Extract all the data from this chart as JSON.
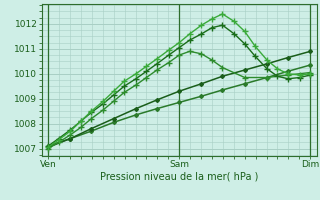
{
  "bg_color": "#ceeee6",
  "grid_color": "#a8cfc4",
  "title": "Pression niveau de la mer( hPa )",
  "xtick_labels": [
    "Ven",
    "Sam",
    "Dim"
  ],
  "xtick_positions": [
    0,
    1,
    2
  ],
  "ylim": [
    1006.7,
    1012.8
  ],
  "yticks": [
    1007,
    1008,
    1009,
    1010,
    1011,
    1012
  ],
  "series": [
    {
      "x": [
        0.0,
        0.17,
        0.33,
        0.5,
        0.67,
        0.83,
        1.0,
        1.17,
        1.33,
        1.5,
        1.67,
        1.83,
        2.0
      ],
      "y": [
        1007.1,
        1007.4,
        1007.7,
        1008.05,
        1008.35,
        1008.6,
        1008.85,
        1009.1,
        1009.35,
        1009.6,
        1009.85,
        1010.1,
        1010.35
      ],
      "color": "#2a7a2a",
      "lw": 1.1,
      "marker": "D",
      "ms": 2.0
    },
    {
      "x": [
        0.0,
        0.17,
        0.33,
        0.5,
        0.67,
        0.83,
        1.0,
        1.17,
        1.33,
        1.5,
        1.67,
        1.83,
        2.0
      ],
      "y": [
        1007.05,
        1007.4,
        1007.8,
        1008.2,
        1008.6,
        1008.95,
        1009.3,
        1009.6,
        1009.9,
        1010.15,
        1010.4,
        1010.65,
        1010.9
      ],
      "color": "#1a5e1a",
      "lw": 1.1,
      "marker": "D",
      "ms": 2.0
    },
    {
      "x": [
        0.0,
        0.08,
        0.17,
        0.25,
        0.33,
        0.42,
        0.5,
        0.58,
        0.67,
        0.75,
        0.83,
        0.92,
        1.0,
        1.08,
        1.17,
        1.25,
        1.33,
        1.5,
        1.67,
        1.83,
        2.0
      ],
      "y": [
        1007.0,
        1007.25,
        1007.55,
        1007.85,
        1008.2,
        1008.55,
        1008.9,
        1009.25,
        1009.55,
        1009.85,
        1010.15,
        1010.45,
        1010.75,
        1010.9,
        1010.8,
        1010.55,
        1010.25,
        1009.85,
        1009.85,
        1009.95,
        1010.05
      ],
      "color": "#2d8c2d",
      "lw": 1.0,
      "marker": "+",
      "ms": 4.5
    },
    {
      "x": [
        0.0,
        0.08,
        0.17,
        0.25,
        0.33,
        0.42,
        0.5,
        0.58,
        0.67,
        0.75,
        0.83,
        0.92,
        1.0,
        1.08,
        1.17,
        1.25,
        1.33,
        1.42,
        1.5,
        1.58,
        1.67,
        1.75,
        1.83,
        1.92,
        2.0
      ],
      "y": [
        1007.1,
        1007.4,
        1007.75,
        1008.1,
        1008.45,
        1008.8,
        1009.15,
        1009.5,
        1009.8,
        1010.1,
        1010.4,
        1010.75,
        1011.05,
        1011.35,
        1011.6,
        1011.85,
        1011.95,
        1011.6,
        1011.2,
        1010.7,
        1010.2,
        1009.9,
        1009.8,
        1009.85,
        1009.95
      ],
      "color": "#1a6e1a",
      "lw": 1.0,
      "marker": "+",
      "ms": 4.5
    },
    {
      "x": [
        0.0,
        0.08,
        0.17,
        0.25,
        0.33,
        0.42,
        0.5,
        0.58,
        0.67,
        0.75,
        0.83,
        0.92,
        1.0,
        1.08,
        1.17,
        1.25,
        1.33,
        1.42,
        1.5,
        1.58,
        1.67,
        1.75,
        1.83,
        1.92,
        2.0
      ],
      "y": [
        1007.05,
        1007.35,
        1007.7,
        1008.1,
        1008.5,
        1008.9,
        1009.3,
        1009.7,
        1010.0,
        1010.3,
        1010.6,
        1010.95,
        1011.25,
        1011.6,
        1011.95,
        1012.2,
        1012.4,
        1012.1,
        1011.7,
        1011.1,
        1010.55,
        1010.2,
        1010.0,
        1009.95,
        1010.0
      ],
      "color": "#3aaa3a",
      "lw": 1.0,
      "marker": "+",
      "ms": 4.5
    }
  ]
}
